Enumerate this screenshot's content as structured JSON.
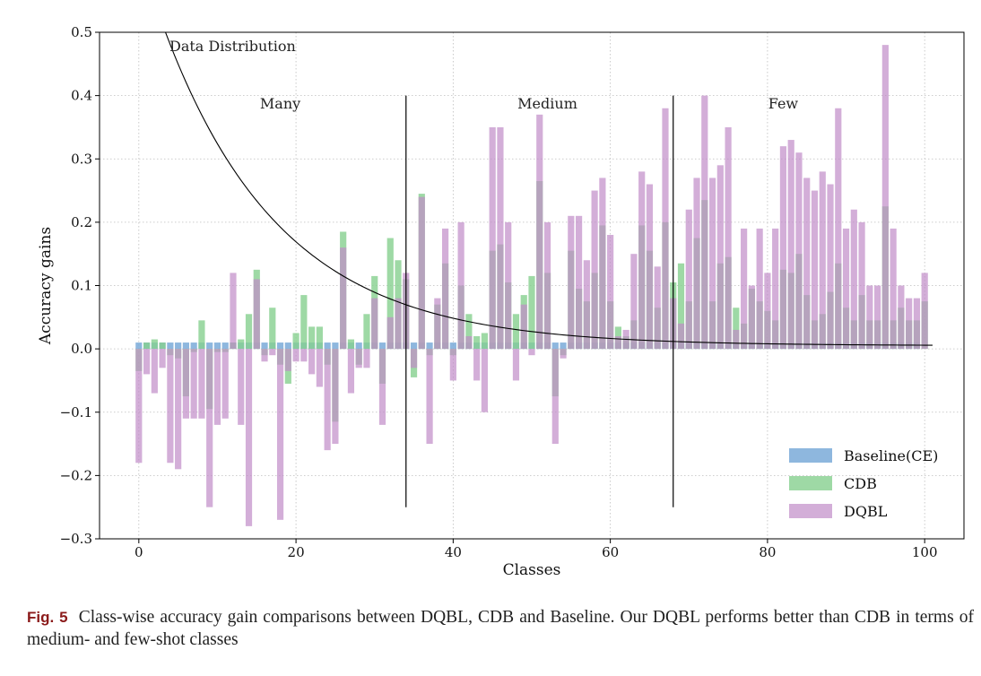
{
  "caption": {
    "label": "Fig. 5",
    "text": "Class-wise accuracy gain comparisons between DQBL, CDB and Baseline. Our DQBL performs better than CDB in terms of medium- and few-shot classes"
  },
  "colors": {
    "baseline": "#7aaad8",
    "cdb": "#86d08e",
    "dqbl": "#c08cc8"
  },
  "chart_data": {
    "type": "bar",
    "xlabel": "Classes",
    "ylabel": "Accuracy gains",
    "xlim": [
      -5,
      105
    ],
    "ylim": [
      -0.3,
      0.5
    ],
    "xticks": [
      0,
      20,
      40,
      60,
      80,
      100
    ],
    "yticks": [
      -0.3,
      -0.2,
      -0.1,
      0.0,
      0.1,
      0.2,
      0.3,
      0.4,
      0.5
    ],
    "ytick_labels": [
      "−0.3",
      "−0.2",
      "−0.1",
      "0.0",
      "0.1",
      "0.2",
      "0.3",
      "0.4",
      "0.5"
    ],
    "grid": true,
    "legend_position": "bottom-right",
    "group_dividers": [
      34,
      68
    ],
    "group_labels": [
      "Many",
      "Medium",
      "Few"
    ],
    "curve_label": "Data Distribution",
    "series": [
      {
        "name": "Baseline(CE)",
        "values": [
          0.01,
          0.01,
          0.01,
          0.01,
          0.01,
          0.01,
          0.01,
          0.01,
          0.01,
          0.01,
          0.01,
          0.01,
          0.01,
          0.01,
          0.01,
          0.01,
          0.01,
          0.01,
          0.01,
          0.01,
          0.01,
          0.01,
          0.01,
          0.01,
          0.01,
          0.01,
          0.01,
          0.01,
          0.01,
          0.01,
          0.01,
          0.01,
          0.01,
          0.01,
          0.01,
          0.01,
          0.01,
          0.01,
          0.01,
          0.01,
          0.01,
          0.01,
          0.01,
          0.01,
          0.01,
          0.01,
          0.01,
          0.01,
          0.01,
          0.01,
          0.01,
          0.01,
          0.01,
          0.01,
          0.01,
          0.01,
          0.01,
          0.01,
          0.01,
          0.01,
          0.01,
          0.01,
          0.01,
          0.01,
          0.01,
          0.01,
          0.01,
          0.01,
          0.01,
          0.01,
          0.01,
          0.01,
          0.01,
          0.01,
          0.01,
          0.01,
          0.01,
          0.01,
          0.01,
          0.01,
          0.01,
          0.01,
          0.01,
          0.01,
          0.01,
          0.01,
          0.01,
          0.01,
          0.01,
          0.01,
          0.01,
          0.01,
          0.01,
          0.01,
          0.01,
          0.01,
          0.01,
          0.01,
          0.01,
          0.01
        ]
      },
      {
        "name": "CDB",
        "values": [
          -0.035,
          0.01,
          0.015,
          0.01,
          -0.01,
          -0.015,
          -0.075,
          -0.005,
          0.045,
          -0.095,
          -0.005,
          -0.005,
          0.01,
          0.015,
          0.055,
          0.125,
          -0.01,
          0.065,
          -0.025,
          -0.055,
          0.025,
          0.085,
          0.035,
          0.035,
          -0.025,
          -0.115,
          0.185,
          0.015,
          -0.025,
          0.055,
          0.115,
          -0.055,
          0.175,
          0.14,
          0.11,
          -0.045,
          0.245,
          -0.01,
          0.07,
          0.135,
          -0.01,
          0.1,
          0.055,
          0.02,
          0.025,
          0.155,
          0.165,
          0.105,
          0.055,
          0.085,
          0.115,
          0.265,
          0.12,
          -0.075,
          -0.01,
          0.155,
          0.095,
          0.075,
          0.12,
          0.195,
          0.075,
          0.035,
          0.02,
          0.045,
          0.195,
          0.155,
          0.065,
          0.2,
          0.105,
          0.135,
          0.075,
          0.175,
          0.235,
          0.075,
          0.135,
          0.145,
          0.065,
          0.04,
          0.095,
          0.075,
          0.06,
          0.045,
          0.125,
          0.12,
          0.15,
          0.085,
          0.045,
          0.055,
          0.09,
          0.135,
          0.065,
          0.045,
          0.085,
          0.045,
          0.045,
          0.225,
          0.045,
          0.065,
          0.045,
          0.045,
          0.075
        ]
      },
      {
        "name": "DQBL",
        "values": [
          -0.18,
          -0.04,
          -0.07,
          -0.03,
          -0.18,
          -0.19,
          -0.11,
          -0.11,
          -0.11,
          -0.25,
          -0.12,
          -0.11,
          0.12,
          -0.12,
          -0.28,
          0.11,
          -0.02,
          -0.01,
          -0.27,
          -0.035,
          -0.02,
          -0.02,
          -0.04,
          -0.06,
          -0.16,
          -0.15,
          0.16,
          -0.07,
          -0.03,
          -0.03,
          0.08,
          -0.12,
          0.05,
          0.08,
          0.12,
          -0.03,
          0.24,
          -0.15,
          0.08,
          0.19,
          -0.05,
          0.2,
          0.02,
          -0.05,
          -0.1,
          0.35,
          0.35,
          0.2,
          -0.05,
          0.07,
          -0.01,
          0.37,
          0.2,
          -0.15,
          -0.015,
          0.21,
          0.21,
          0.14,
          0.25,
          0.27,
          0.18,
          0.02,
          0.03,
          0.15,
          0.28,
          0.26,
          0.13,
          0.38,
          0.08,
          0.04,
          0.22,
          0.27,
          0.4,
          0.27,
          0.29,
          0.35,
          0.03,
          0.19,
          0.1,
          0.19,
          0.12,
          0.19,
          0.32,
          0.33,
          0.31,
          0.27,
          0.25,
          0.28,
          0.26,
          0.38,
          0.19,
          0.22,
          0.2,
          0.1,
          0.1,
          0.48,
          0.19,
          0.1,
          0.08,
          0.08,
          0.12
        ]
      }
    ]
  }
}
